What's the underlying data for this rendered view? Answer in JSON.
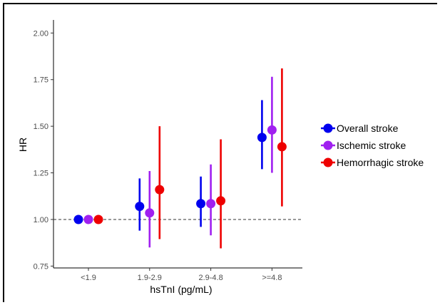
{
  "chart_data": {
    "type": "scatter",
    "subtype": "point-range",
    "title": "",
    "xlabel": "hsTnI (pg/mL)",
    "ylabel": "HR",
    "categories": [
      "<1.9",
      "1.9-2.9",
      "2.9-4.8",
      ">=4.8"
    ],
    "ylim": [
      0.74,
      2.07
    ],
    "yticks": [
      "0.75",
      "1.00",
      "1.25",
      "1.50",
      "1.75",
      "2.00"
    ],
    "yticks_values": [
      0.75,
      1.0,
      1.25,
      1.5,
      1.75,
      2.0
    ],
    "reference_line": 1.0,
    "grid": false,
    "legend_position": "right",
    "series": [
      {
        "name": "Overall stroke",
        "color": "#0000ee",
        "values": [
          1.0,
          1.07,
          1.085,
          1.44
        ],
        "lower": [
          1.0,
          0.94,
          0.96,
          1.27
        ],
        "upper": [
          1.0,
          1.22,
          1.23,
          1.64
        ]
      },
      {
        "name": "Ischemic stroke",
        "color": "#a020f0",
        "values": [
          1.0,
          1.035,
          1.085,
          1.48
        ],
        "lower": [
          1.0,
          0.85,
          0.915,
          1.25
        ],
        "upper": [
          1.0,
          1.26,
          1.295,
          1.765
        ]
      },
      {
        "name": "Hemorrhagic stroke",
        "color": "#ee0000",
        "values": [
          1.0,
          1.16,
          1.1,
          1.39
        ],
        "lower": [
          1.0,
          0.895,
          0.845,
          1.07
        ],
        "upper": [
          1.0,
          1.5,
          1.43,
          1.81
        ]
      }
    ]
  }
}
